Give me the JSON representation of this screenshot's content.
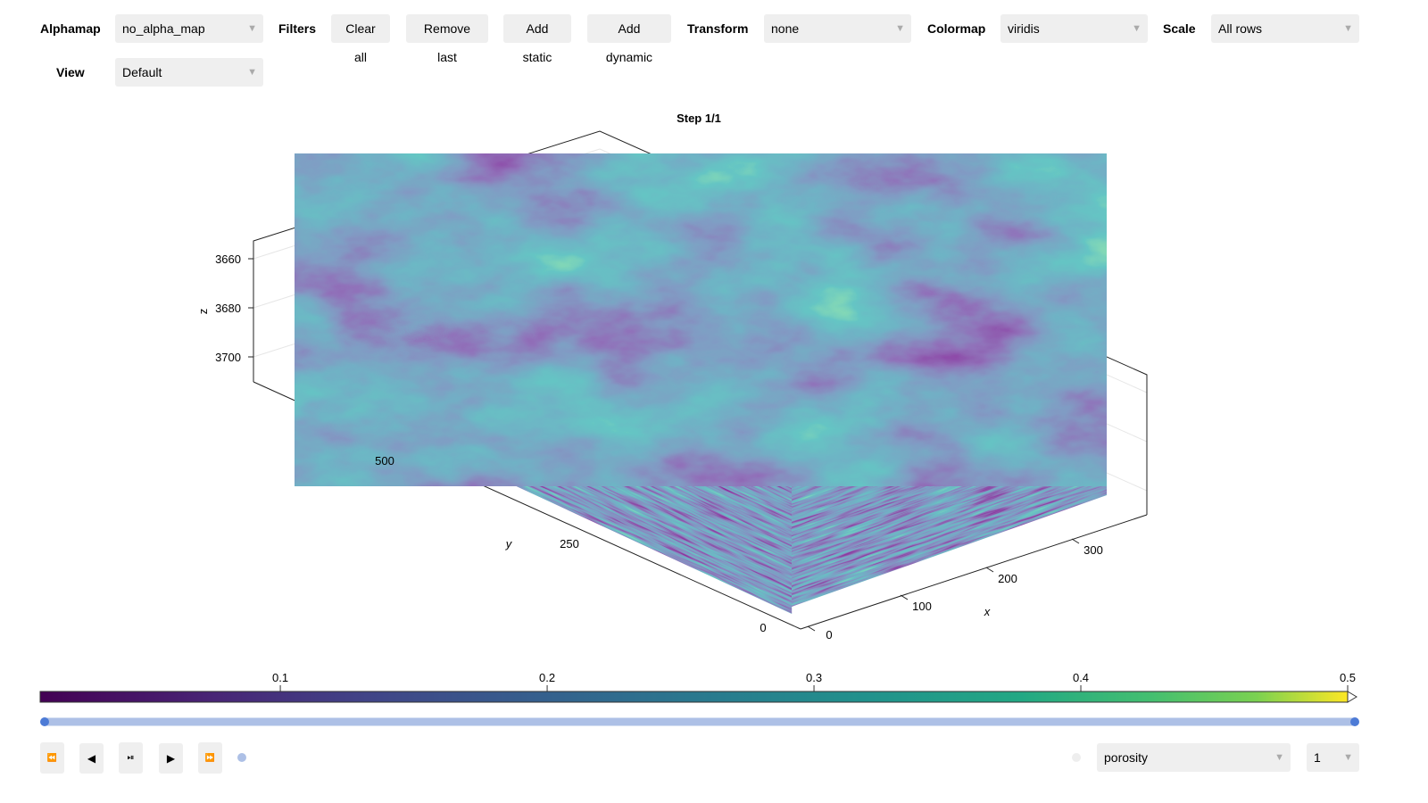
{
  "toolbar": {
    "alphamap_label": "Alphamap",
    "alphamap_value": "no_alpha_map",
    "filters_label": "Filters",
    "clear_all": "Clear all",
    "remove_last": "Remove last",
    "add_static": "Add static",
    "add_dynamic": "Add dynamic",
    "transform_label": "Transform",
    "transform_value": "none",
    "colormap_label": "Colormap",
    "colormap_value": "viridis",
    "scale_label": "Scale",
    "scale_value": "All rows",
    "view_label": "View",
    "view_value": "Default",
    "dropdown_arrow": "▼"
  },
  "plot": {
    "title": "Step 1/1",
    "z_axis": {
      "label": "z",
      "ticks": [
        "3660",
        "3680",
        "3700"
      ]
    },
    "y_axis": {
      "label": "y",
      "ticks": [
        "500",
        "250",
        "0"
      ]
    },
    "x_axis": {
      "label": "x",
      "ticks": [
        "0",
        "100",
        "200",
        "300"
      ]
    }
  },
  "colorbar": {
    "colormap": "viridis",
    "range": [
      0.01,
      0.5
    ],
    "ticks": [
      "0.1",
      "0.2",
      "0.3",
      "0.4",
      "0.5"
    ],
    "high_clip_arrow": true
  },
  "time_slider": {
    "start": 0,
    "end": 1
  },
  "playback": {
    "first": "⏪",
    "prev": "◀",
    "playpause": "⏯",
    "next": "▶",
    "last": "⏩"
  },
  "bottom": {
    "variable_value": "porosity",
    "index_value": "1"
  },
  "colors": {
    "button_bg": "#efefef",
    "slider_track": "#adc0e6",
    "slider_handle": "#4d7bd6"
  }
}
